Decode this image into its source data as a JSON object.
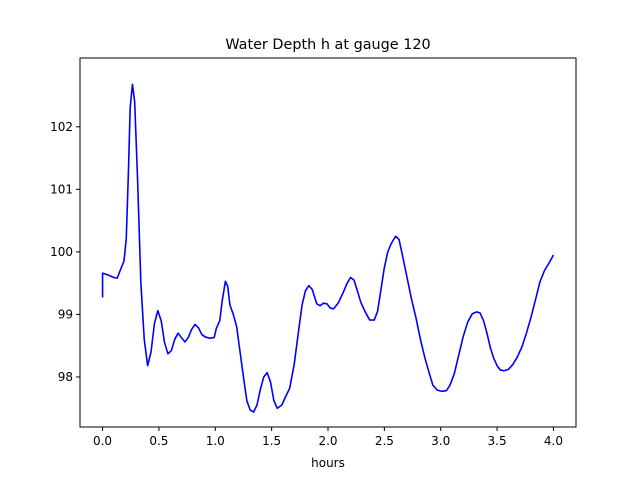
{
  "chart_data": {
    "type": "line",
    "title": "Water Depth h at gauge 120",
    "xlabel": "hours",
    "ylabel": "",
    "xlim": [
      -0.2,
      4.2
    ],
    "ylim": [
      97.2,
      103.1
    ],
    "xticks": [
      "0.0",
      "0.5",
      "1.0",
      "1.5",
      "2.0",
      "2.5",
      "3.0",
      "3.5",
      "4.0"
    ],
    "yticks": [
      "98",
      "99",
      "100",
      "101",
      "102"
    ],
    "grid": false,
    "legend": "none",
    "series": [
      {
        "color": "#0000ff",
        "points": [
          [
            0.0,
            99.27
          ],
          [
            0.0,
            99.66
          ],
          [
            0.05,
            99.63
          ],
          [
            0.1,
            99.59
          ],
          [
            0.13,
            99.58
          ],
          [
            0.16,
            99.72
          ],
          [
            0.19,
            99.85
          ],
          [
            0.21,
            100.2
          ],
          [
            0.23,
            101.3
          ],
          [
            0.245,
            102.3
          ],
          [
            0.265,
            102.68
          ],
          [
            0.285,
            102.4
          ],
          [
            0.31,
            101.2
          ],
          [
            0.34,
            99.5
          ],
          [
            0.37,
            98.6
          ],
          [
            0.4,
            98.18
          ],
          [
            0.43,
            98.4
          ],
          [
            0.46,
            98.85
          ],
          [
            0.49,
            99.06
          ],
          [
            0.52,
            98.9
          ],
          [
            0.55,
            98.55
          ],
          [
            0.58,
            98.37
          ],
          [
            0.61,
            98.42
          ],
          [
            0.64,
            98.6
          ],
          [
            0.67,
            98.7
          ],
          [
            0.7,
            98.63
          ],
          [
            0.73,
            98.56
          ],
          [
            0.76,
            98.63
          ],
          [
            0.79,
            98.76
          ],
          [
            0.82,
            98.84
          ],
          [
            0.85,
            98.79
          ],
          [
            0.88,
            98.68
          ],
          [
            0.91,
            98.64
          ],
          [
            0.95,
            98.62
          ],
          [
            0.99,
            98.63
          ],
          [
            1.01,
            98.78
          ],
          [
            1.04,
            98.9
          ],
          [
            1.06,
            99.2
          ],
          [
            1.09,
            99.53
          ],
          [
            1.11,
            99.45
          ],
          [
            1.13,
            99.15
          ],
          [
            1.16,
            99.0
          ],
          [
            1.19,
            98.8
          ],
          [
            1.22,
            98.4
          ],
          [
            1.25,
            98.0
          ],
          [
            1.28,
            97.62
          ],
          [
            1.31,
            97.47
          ],
          [
            1.34,
            97.44
          ],
          [
            1.37,
            97.55
          ],
          [
            1.4,
            97.8
          ],
          [
            1.43,
            98.0
          ],
          [
            1.46,
            98.07
          ],
          [
            1.49,
            97.92
          ],
          [
            1.52,
            97.62
          ],
          [
            1.55,
            97.5
          ],
          [
            1.59,
            97.55
          ],
          [
            1.62,
            97.67
          ],
          [
            1.66,
            97.82
          ],
          [
            1.7,
            98.2
          ],
          [
            1.74,
            98.75
          ],
          [
            1.77,
            99.15
          ],
          [
            1.8,
            99.38
          ],
          [
            1.83,
            99.46
          ],
          [
            1.86,
            99.4
          ],
          [
            1.9,
            99.17
          ],
          [
            1.93,
            99.14
          ],
          [
            1.96,
            99.18
          ],
          [
            1.99,
            99.17
          ],
          [
            2.02,
            99.1
          ],
          [
            2.05,
            99.09
          ],
          [
            2.09,
            99.18
          ],
          [
            2.13,
            99.33
          ],
          [
            2.17,
            99.5
          ],
          [
            2.2,
            99.59
          ],
          [
            2.23,
            99.55
          ],
          [
            2.26,
            99.38
          ],
          [
            2.29,
            99.2
          ],
          [
            2.33,
            99.04
          ],
          [
            2.37,
            98.91
          ],
          [
            2.41,
            98.91
          ],
          [
            2.44,
            99.05
          ],
          [
            2.47,
            99.4
          ],
          [
            2.5,
            99.75
          ],
          [
            2.53,
            100.0
          ],
          [
            2.56,
            100.13
          ],
          [
            2.6,
            100.25
          ],
          [
            2.63,
            100.2
          ],
          [
            2.66,
            99.95
          ],
          [
            2.7,
            99.6
          ],
          [
            2.74,
            99.25
          ],
          [
            2.78,
            98.95
          ],
          [
            2.82,
            98.6
          ],
          [
            2.86,
            98.3
          ],
          [
            2.9,
            98.05
          ],
          [
            2.93,
            97.87
          ],
          [
            2.97,
            97.79
          ],
          [
            3.01,
            97.77
          ],
          [
            3.05,
            97.78
          ],
          [
            3.08,
            97.86
          ],
          [
            3.12,
            98.05
          ],
          [
            3.16,
            98.35
          ],
          [
            3.2,
            98.65
          ],
          [
            3.24,
            98.88
          ],
          [
            3.28,
            99.01
          ],
          [
            3.32,
            99.04
          ],
          [
            3.35,
            99.02
          ],
          [
            3.38,
            98.9
          ],
          [
            3.41,
            98.7
          ],
          [
            3.44,
            98.47
          ],
          [
            3.47,
            98.3
          ],
          [
            3.5,
            98.18
          ],
          [
            3.53,
            98.11
          ],
          [
            3.56,
            98.1
          ],
          [
            3.6,
            98.12
          ],
          [
            3.64,
            98.2
          ],
          [
            3.68,
            98.32
          ],
          [
            3.72,
            98.48
          ],
          [
            3.76,
            98.7
          ],
          [
            3.8,
            98.95
          ],
          [
            3.84,
            99.23
          ],
          [
            3.88,
            99.52
          ],
          [
            3.92,
            99.7
          ],
          [
            3.96,
            99.82
          ],
          [
            4.0,
            99.95
          ]
        ]
      }
    ]
  }
}
